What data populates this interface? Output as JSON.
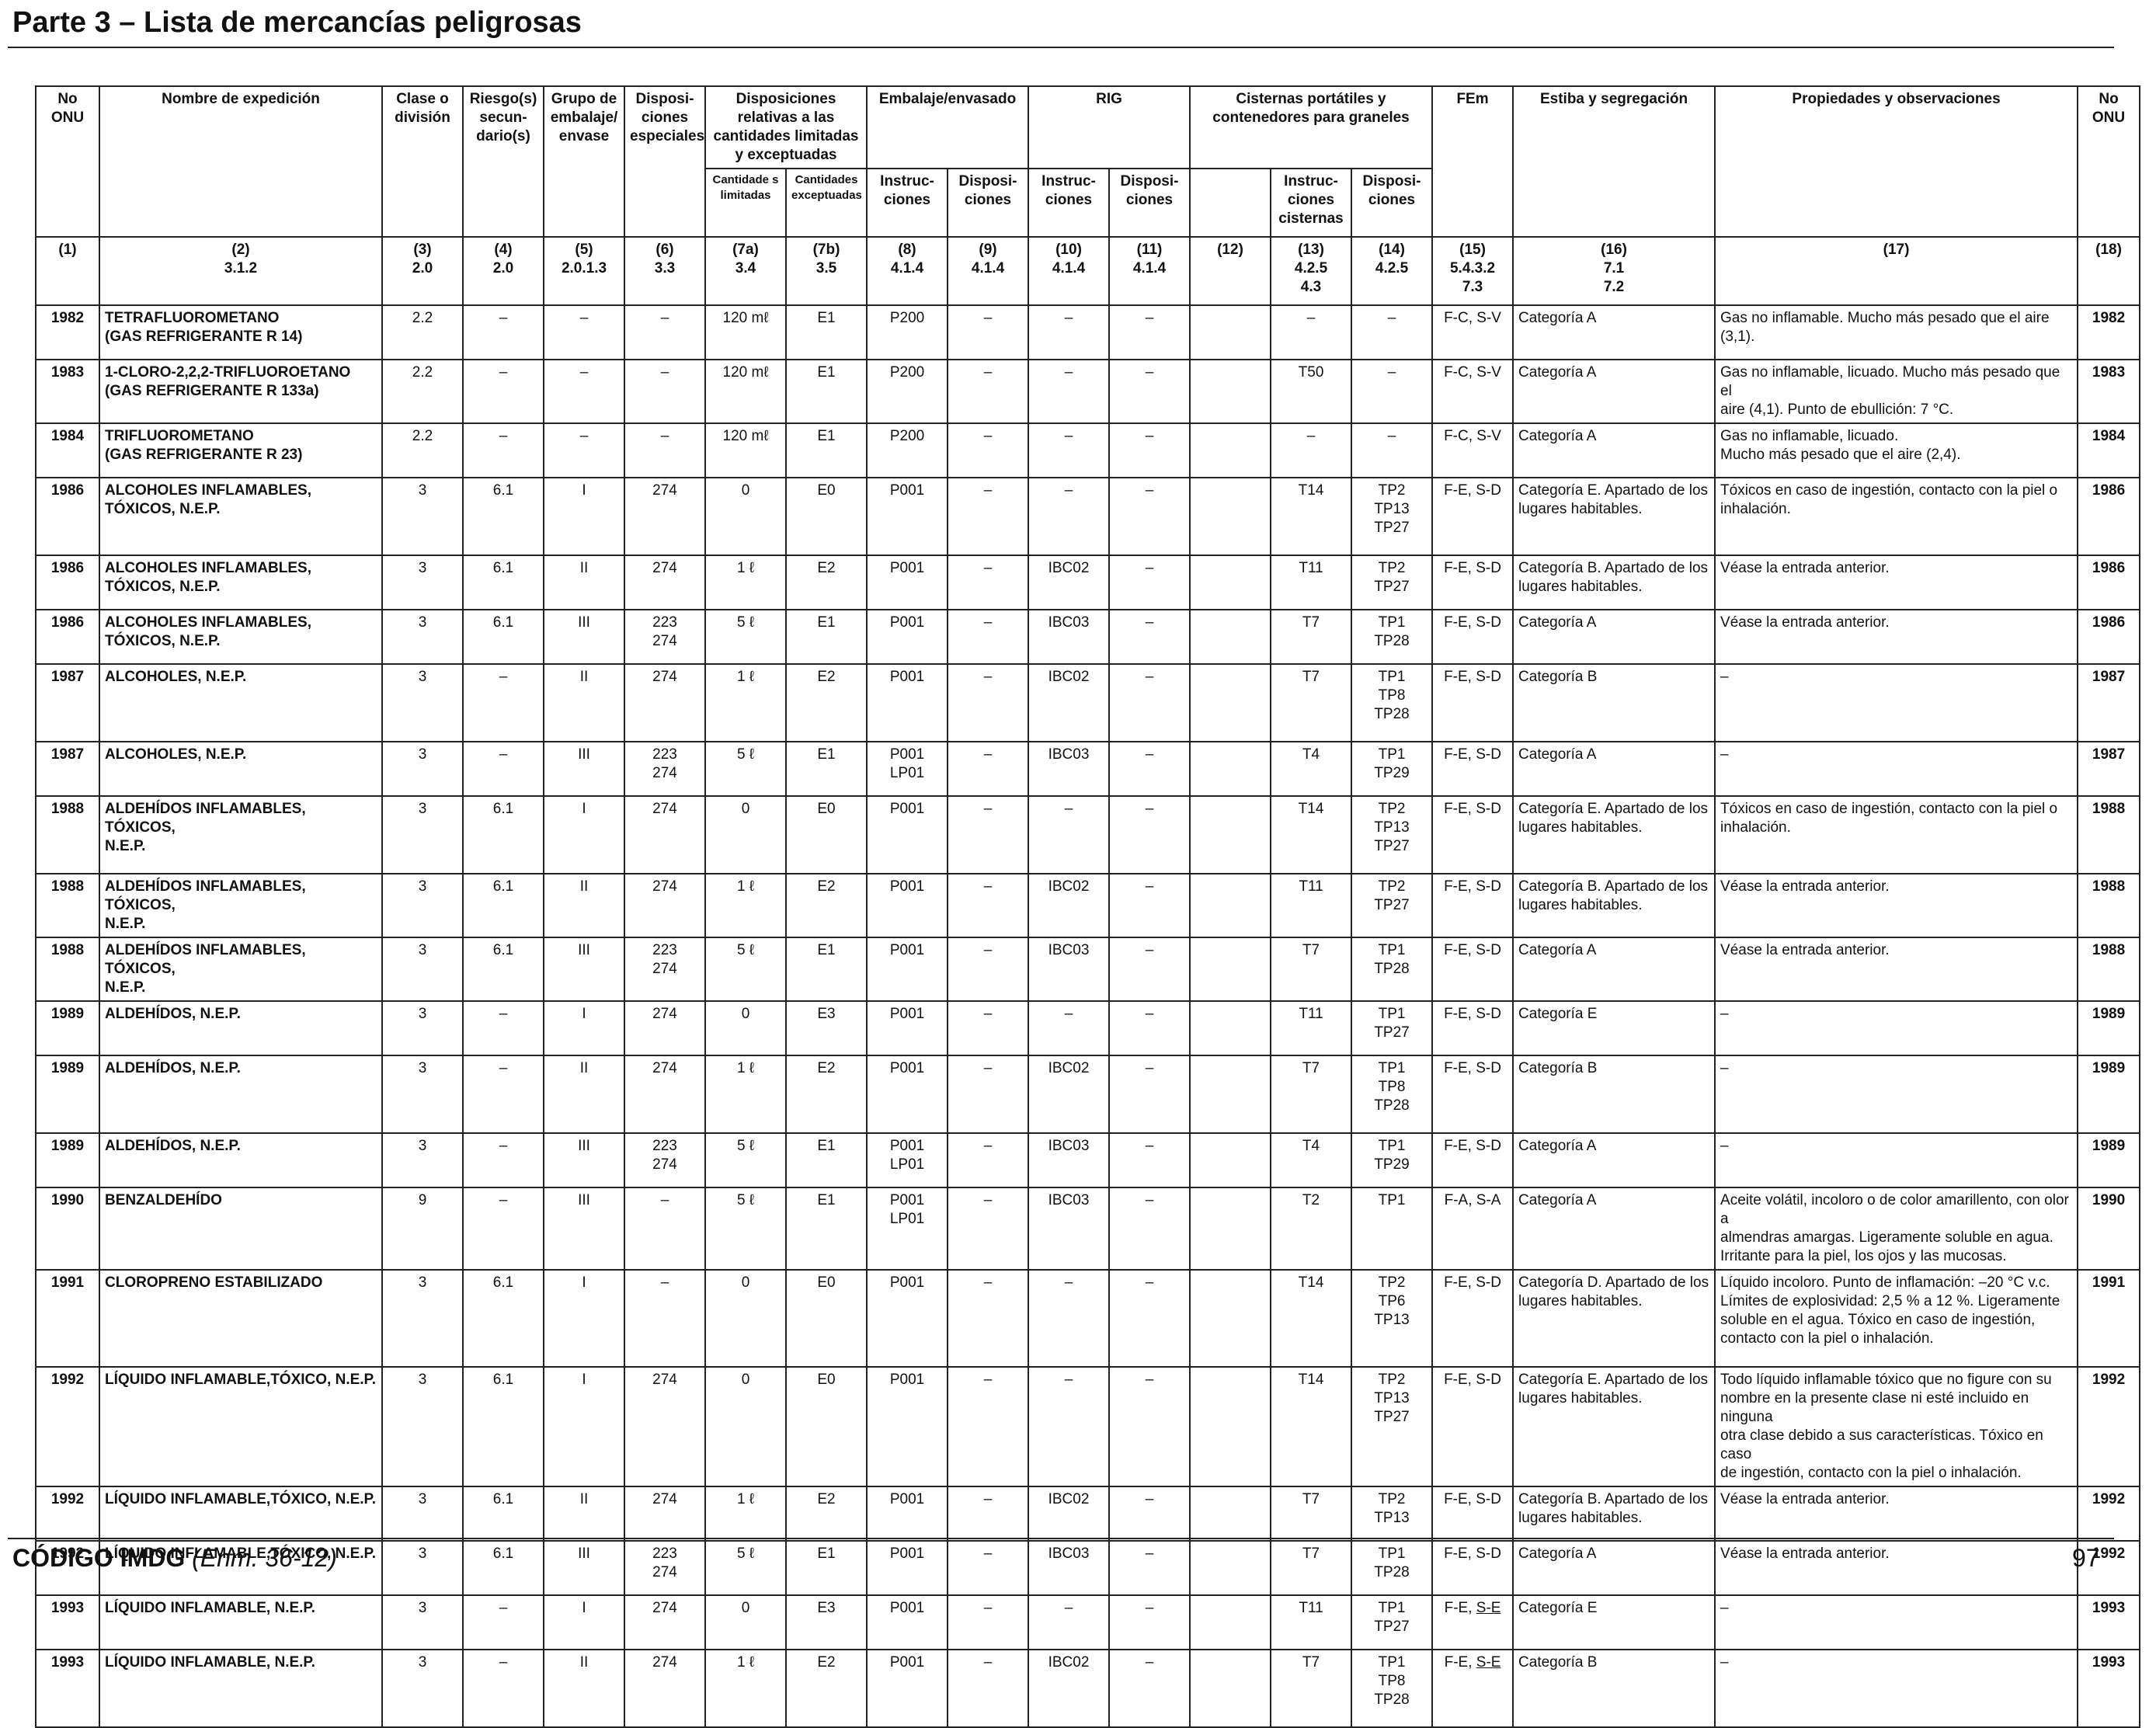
{
  "page": {
    "title": "Parte 3 – Lista de mercancías peligrosas",
    "footer_code": "CÓDIGO IMDG",
    "footer_edition": "(Enm. 36-12)",
    "page_number": "97"
  },
  "headers": {
    "un": "No ONU",
    "name": "Nombre de expedición",
    "class": "Clase o división",
    "subrisk": "Riesgo(s) secun-dario(s)",
    "pg": "Grupo de embalaje/ envase",
    "sp": "Disposi-ciones especiales",
    "limited_group": "Disposiciones relativas a las cantidades limitadas y exceptuadas",
    "limited": "Cantidade s limitadas",
    "excepted": "Cantidades exceptuadas",
    "packing_group": "Embalaje/envasado",
    "pack_instr": "Instruc-ciones",
    "pack_prov": "Disposi-ciones",
    "ibc_group": "RIG",
    "ibc_instr": "Instruc-ciones",
    "ibc_prov": "Disposi-ciones",
    "tank_group": "Cisternas portátiles y contenedores para graneles",
    "tank_instr": "Instruc-ciones cisternas",
    "tank_prov": "Disposi-ciones",
    "ems": "FEm",
    "stowage": "Estiba y segregación",
    "props": "Propiedades y observaciones",
    "un2": "No ONU"
  },
  "column_numbers": [
    [
      "(1)"
    ],
    [
      "(2)",
      "3.1.2"
    ],
    [
      "(3)",
      "2.0"
    ],
    [
      "(4)",
      "2.0"
    ],
    [
      "(5)",
      "2.0.1.3"
    ],
    [
      "(6)",
      "3.3"
    ],
    [
      "(7a)",
      "3.4"
    ],
    [
      "(7b)",
      "3.5"
    ],
    [
      "(8)",
      "4.1.4"
    ],
    [
      "(9)",
      "4.1.4"
    ],
    [
      "(10)",
      "4.1.4"
    ],
    [
      "(11)",
      "4.1.4"
    ],
    [
      "(12)"
    ],
    [
      "(13)",
      "4.2.5",
      "4.3"
    ],
    [
      "(14)",
      "4.2.5"
    ],
    [
      "(15)",
      "5.4.3.2",
      "7.3"
    ],
    [
      "(16)",
      "7.1",
      "7.2"
    ],
    [
      "(17)"
    ],
    [
      "(18)"
    ]
  ],
  "rows": [
    {
      "un": "1982",
      "name": [
        "TETRAFLUOROMETANO",
        "(GAS REFRIGERANTE R 14)"
      ],
      "class": "2.2",
      "subrisk": "–",
      "pg": "–",
      "sp": [
        "–"
      ],
      "limited": "120 mℓ",
      "excepted": "E1",
      "pi": [
        "P200"
      ],
      "pp": "–",
      "ibc": "–",
      "ibcp": "–",
      "c12": "",
      "tank": "–",
      "tankp": [
        "–"
      ],
      "ems": "F-C, S-V",
      "stow": [
        "Categoría A"
      ],
      "props": [
        "Gas no inflamable. Mucho más pesado que el aire (3,1)."
      ]
    },
    {
      "un": "1983",
      "name": [
        "1-CLORO-2,2,2-TRIFLUOROETANO",
        "(GAS REFRIGERANTE R 133a)"
      ],
      "class": "2.2",
      "subrisk": "–",
      "pg": "–",
      "sp": [
        "–"
      ],
      "limited": "120 mℓ",
      "excepted": "E1",
      "pi": [
        "P200"
      ],
      "pp": "–",
      "ibc": "–",
      "ibcp": "–",
      "c12": "",
      "tank": "T50",
      "tankp": [
        "–"
      ],
      "ems": "F-C, S-V",
      "stow": [
        "Categoría A"
      ],
      "props": [
        "Gas no inflamable, licuado. Mucho más pesado que el",
        "aire (4,1). Punto de ebullición: 7 °C."
      ]
    },
    {
      "un": "1984",
      "name": [
        "TRIFLUOROMETANO",
        "(GAS REFRIGERANTE R 23)"
      ],
      "class": "2.2",
      "subrisk": "–",
      "pg": "–",
      "sp": [
        "–"
      ],
      "limited": "120 mℓ",
      "excepted": "E1",
      "pi": [
        "P200"
      ],
      "pp": "–",
      "ibc": "–",
      "ibcp": "–",
      "c12": "",
      "tank": "–",
      "tankp": [
        "–"
      ],
      "ems": "F-C, S-V",
      "stow": [
        "Categoría A"
      ],
      "props": [
        "Gas no inflamable, licuado.",
        "Mucho más pesado que el aire (2,4)."
      ]
    },
    {
      "un": "1986",
      "name": [
        "ALCOHOLES INFLAMABLES,",
        "TÓXICOS, N.E.P."
      ],
      "class": "3",
      "subrisk": "6.1",
      "pg": "I",
      "sp": [
        "274"
      ],
      "limited": "0",
      "excepted": "E0",
      "pi": [
        "P001"
      ],
      "pp": "–",
      "ibc": "–",
      "ibcp": "–",
      "c12": "",
      "tank": "T14",
      "tankp": [
        "TP2",
        "TP13",
        "TP27"
      ],
      "ems": "F-E, S-D",
      "stow": [
        "Categoría E. Apartado de los",
        "lugares habitables."
      ],
      "props": [
        "Tóxicos en caso de ingestión, contacto con la piel o",
        "inhalación."
      ]
    },
    {
      "un": "1986",
      "name": [
        "ALCOHOLES INFLAMABLES,",
        "TÓXICOS, N.E.P."
      ],
      "class": "3",
      "subrisk": "6.1",
      "pg": "II",
      "sp": [
        "274"
      ],
      "limited": "1 ℓ",
      "excepted": "E2",
      "pi": [
        "P001"
      ],
      "pp": "–",
      "ibc": "IBC02",
      "ibcp": "–",
      "c12": "",
      "tank": "T11",
      "tankp": [
        "TP2",
        "TP27"
      ],
      "ems": "F-E, S-D",
      "stow": [
        "Categoría B. Apartado de los",
        "lugares habitables."
      ],
      "props": [
        "Véase la entrada anterior."
      ]
    },
    {
      "un": "1986",
      "name": [
        "ALCOHOLES INFLAMABLES,",
        "TÓXICOS, N.E.P."
      ],
      "class": "3",
      "subrisk": "6.1",
      "pg": "III",
      "sp": [
        "223",
        "274"
      ],
      "limited": "5 ℓ",
      "excepted": "E1",
      "pi": [
        "P001"
      ],
      "pp": "–",
      "ibc": "IBC03",
      "ibcp": "–",
      "c12": "",
      "tank": "T7",
      "tankp": [
        "TP1",
        "TP28"
      ],
      "ems": "F-E, S-D",
      "stow": [
        "Categoría A"
      ],
      "props": [
        "Véase la entrada anterior."
      ]
    },
    {
      "un": "1987",
      "name": [
        "ALCOHOLES, N.E.P."
      ],
      "class": "3",
      "subrisk": "–",
      "pg": "II",
      "sp": [
        "274"
      ],
      "limited": "1 ℓ",
      "excepted": "E2",
      "pi": [
        "P001"
      ],
      "pp": "–",
      "ibc": "IBC02",
      "ibcp": "–",
      "c12": "",
      "tank": "T7",
      "tankp": [
        "TP1",
        "TP8",
        "TP28"
      ],
      "ems": "F-E, S-D",
      "stow": [
        "Categoría B"
      ],
      "props": [
        "–"
      ]
    },
    {
      "un": "1987",
      "name": [
        "ALCOHOLES, N.E.P."
      ],
      "class": "3",
      "subrisk": "–",
      "pg": "III",
      "sp": [
        "223",
        "274"
      ],
      "limited": "5 ℓ",
      "excepted": "E1",
      "pi": [
        "P001",
        "LP01"
      ],
      "pp": "–",
      "ibc": "IBC03",
      "ibcp": "–",
      "c12": "",
      "tank": "T4",
      "tankp": [
        "TP1",
        "TP29"
      ],
      "ems": "F-E, S-D",
      "stow": [
        "Categoría A"
      ],
      "props": [
        "–"
      ]
    },
    {
      "un": "1988",
      "name": [
        "ALDEHÍDOS INFLAMABLES, TÓXICOS,",
        "N.E.P."
      ],
      "class": "3",
      "subrisk": "6.1",
      "pg": "I",
      "sp": [
        "274"
      ],
      "limited": "0",
      "excepted": "E0",
      "pi": [
        "P001"
      ],
      "pp": "–",
      "ibc": "–",
      "ibcp": "–",
      "c12": "",
      "tank": "T14",
      "tankp": [
        "TP2",
        "TP13",
        "TP27"
      ],
      "ems": "F-E, S-D",
      "stow": [
        "Categoría E. Apartado de los",
        "lugares habitables."
      ],
      "props": [
        "Tóxicos en caso de ingestión, contacto con la piel o",
        "inhalación."
      ]
    },
    {
      "un": "1988",
      "name": [
        "ALDEHÍDOS INFLAMABLES, TÓXICOS,",
        "N.E.P."
      ],
      "class": "3",
      "subrisk": "6.1",
      "pg": "II",
      "sp": [
        "274"
      ],
      "limited": "1 ℓ",
      "excepted": "E2",
      "pi": [
        "P001"
      ],
      "pp": "–",
      "ibc": "IBC02",
      "ibcp": "–",
      "c12": "",
      "tank": "T11",
      "tankp": [
        "TP2",
        "TP27"
      ],
      "ems": "F-E, S-D",
      "stow": [
        "Categoría B. Apartado de los",
        "lugares habitables."
      ],
      "props": [
        "Véase la entrada anterior."
      ]
    },
    {
      "un": "1988",
      "name": [
        "ALDEHÍDOS INFLAMABLES, TÓXICOS,",
        "N.E.P."
      ],
      "class": "3",
      "subrisk": "6.1",
      "pg": "III",
      "sp": [
        "223",
        "274"
      ],
      "limited": "5 ℓ",
      "excepted": "E1",
      "pi": [
        "P001"
      ],
      "pp": "–",
      "ibc": "IBC03",
      "ibcp": "–",
      "c12": "",
      "tank": "T7",
      "tankp": [
        "TP1",
        "TP28"
      ],
      "ems": "F-E, S-D",
      "stow": [
        "Categoría A"
      ],
      "props": [
        "Véase la entrada anterior."
      ]
    },
    {
      "un": "1989",
      "name": [
        "ALDEHÍDOS, N.E.P."
      ],
      "class": "3",
      "subrisk": "–",
      "pg": "I",
      "sp": [
        "274"
      ],
      "limited": "0",
      "excepted": "E3",
      "pi": [
        "P001"
      ],
      "pp": "–",
      "ibc": "–",
      "ibcp": "–",
      "c12": "",
      "tank": "T11",
      "tankp": [
        "TP1",
        "TP27"
      ],
      "ems": "F-E, S-D",
      "stow": [
        "Categoría E"
      ],
      "props": [
        "–"
      ]
    },
    {
      "un": "1989",
      "name": [
        "ALDEHÍDOS, N.E.P."
      ],
      "class": "3",
      "subrisk": "–",
      "pg": "II",
      "sp": [
        "274"
      ],
      "limited": "1 ℓ",
      "excepted": "E2",
      "pi": [
        "P001"
      ],
      "pp": "–",
      "ibc": "IBC02",
      "ibcp": "–",
      "c12": "",
      "tank": "T7",
      "tankp": [
        "TP1",
        "TP8",
        "TP28"
      ],
      "ems": "F-E, S-D",
      "stow": [
        "Categoría B"
      ],
      "props": [
        "–"
      ]
    },
    {
      "un": "1989",
      "name": [
        "ALDEHÍDOS, N.E.P."
      ],
      "class": "3",
      "subrisk": "–",
      "pg": "III",
      "sp": [
        "223",
        "274"
      ],
      "limited": "5 ℓ",
      "excepted": "E1",
      "pi": [
        "P001",
        "LP01"
      ],
      "pp": "–",
      "ibc": "IBC03",
      "ibcp": "–",
      "c12": "",
      "tank": "T4",
      "tankp": [
        "TP1",
        "TP29"
      ],
      "ems": "F-E, S-D",
      "stow": [
        "Categoría A"
      ],
      "props": [
        "–"
      ]
    },
    {
      "un": "1990",
      "name": [
        "BENZALDEHÍDO"
      ],
      "class": "9",
      "subrisk": "–",
      "pg": "III",
      "sp": [
        "–"
      ],
      "limited": "5 ℓ",
      "excepted": "E1",
      "pi": [
        "P001",
        "LP01"
      ],
      "pp": "–",
      "ibc": "IBC03",
      "ibcp": "–",
      "c12": "",
      "tank": "T2",
      "tankp": [
        "TP1"
      ],
      "ems": "F-A, S-A",
      "stow": [
        "Categoría A"
      ],
      "props": [
        "Aceite volátil, incoloro o de color amarillento, con olor a",
        "almendras amargas. Ligeramente soluble en agua.",
        "Irritante para la piel, los ojos y las mucosas."
      ]
    },
    {
      "un": "1991",
      "name": [
        "CLOROPRENO ESTABILIZADO"
      ],
      "class": "3",
      "subrisk": "6.1",
      "pg": "I",
      "sp": [
        "–"
      ],
      "limited": "0",
      "excepted": "E0",
      "pi": [
        "P001"
      ],
      "pp": "–",
      "ibc": "–",
      "ibcp": "–",
      "c12": "",
      "tank": "T14",
      "tankp": [
        "TP2",
        "TP6",
        "TP13"
      ],
      "ems": "F-E, S-D",
      "stow": [
        "Categoría D. Apartado de los",
        "lugares habitables."
      ],
      "props": [
        "Líquido incoloro. Punto de inflamación: –20 °C v.c.",
        "Límites de explosividad: 2,5 % a 12 %. Ligeramente",
        "soluble en el agua. Tóxico en caso de ingestión,",
        "contacto con la piel o inhalación."
      ]
    },
    {
      "un": "1992",
      "name": [
        "LÍQUIDO INFLAMABLE,TÓXICO, N.E.P."
      ],
      "class": "3",
      "subrisk": "6.1",
      "pg": "I",
      "sp": [
        "274"
      ],
      "limited": "0",
      "excepted": "E0",
      "pi": [
        "P001"
      ],
      "pp": "–",
      "ibc": "–",
      "ibcp": "–",
      "c12": "",
      "tank": "T14",
      "tankp": [
        "TP2",
        "TP13",
        "TP27"
      ],
      "ems": "F-E, S-D",
      "stow": [
        "Categoría E. Apartado de los",
        "lugares habitables."
      ],
      "props": [
        "Todo líquido inflamable tóxico que no figure con su",
        "nombre en la presente clase ni esté incluido en ninguna",
        "otra clase debido a sus características. Tóxico en caso",
        "de ingestión, contacto con la piel o inhalación."
      ]
    },
    {
      "un": "1992",
      "name": [
        "LÍQUIDO INFLAMABLE,TÓXICO, N.E.P."
      ],
      "class": "3",
      "subrisk": "6.1",
      "pg": "II",
      "sp": [
        "274"
      ],
      "limited": "1 ℓ",
      "excepted": "E2",
      "pi": [
        "P001"
      ],
      "pp": "–",
      "ibc": "IBC02",
      "ibcp": "–",
      "c12": "",
      "tank": "T7",
      "tankp": [
        "TP2",
        "TP13"
      ],
      "ems": "F-E, S-D",
      "stow": [
        "Categoría B. Apartado de los",
        "lugares habitables."
      ],
      "props": [
        "Véase la entrada anterior."
      ]
    },
    {
      "un": "1992",
      "name": [
        "LÍQUIDO INFLAMABLE,TÓXICO, N.E.P."
      ],
      "class": "3",
      "subrisk": "6.1",
      "pg": "III",
      "sp": [
        "223",
        "274"
      ],
      "limited": "5 ℓ",
      "excepted": "E1",
      "pi": [
        "P001"
      ],
      "pp": "–",
      "ibc": "IBC03",
      "ibcp": "–",
      "c12": "",
      "tank": "T7",
      "tankp": [
        "TP1",
        "TP28"
      ],
      "ems": "F-E, S-D",
      "stow": [
        "Categoría A"
      ],
      "props": [
        "Véase la entrada anterior."
      ]
    },
    {
      "un": "1993",
      "name": [
        "LÍQUIDO INFLAMABLE, N.E.P."
      ],
      "class": "3",
      "subrisk": "–",
      "pg": "I",
      "sp": [
        "274"
      ],
      "limited": "0",
      "excepted": "E3",
      "pi": [
        "P001"
      ],
      "pp": "–",
      "ibc": "–",
      "ibcp": "–",
      "c12": "",
      "tank": "T11",
      "tankp": [
        "TP1",
        "TP27"
      ],
      "ems": "F-E, S-E",
      "ems_underlined": "S-E",
      "stow": [
        "Categoría E"
      ],
      "props": [
        "–"
      ]
    },
    {
      "un": "1993",
      "name": [
        "LÍQUIDO INFLAMABLE, N.E.P."
      ],
      "class": "3",
      "subrisk": "–",
      "pg": "II",
      "sp": [
        "274"
      ],
      "limited": "1 ℓ",
      "excepted": "E2",
      "pi": [
        "P001"
      ],
      "pp": "–",
      "ibc": "IBC02",
      "ibcp": "–",
      "c12": "",
      "tank": "T7",
      "tankp": [
        "TP1",
        "TP8",
        "TP28"
      ],
      "ems": "F-E, S-E",
      "ems_underlined": "S-E",
      "stow": [
        "Categoría B"
      ],
      "props": [
        "–"
      ]
    }
  ]
}
